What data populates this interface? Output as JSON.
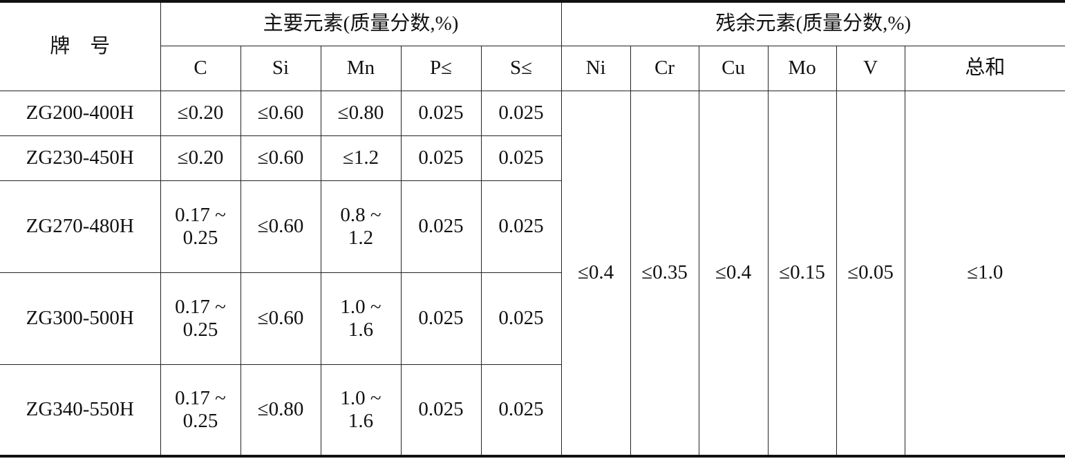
{
  "table": {
    "grade_header": "牌　号",
    "main_group": "主要元素(质量分数,%)",
    "residual_group": "残余元素(质量分数,%)",
    "main_columns": [
      "C",
      "Si",
      "Mn",
      "P≤",
      "S≤"
    ],
    "residual_columns": [
      "Ni",
      "Cr",
      "Cu",
      "Mo",
      "V",
      "总和"
    ],
    "rows": [
      {
        "grade": "ZG200-400H",
        "main": [
          [
            "≤0.20"
          ],
          [
            "≤0.60"
          ],
          [
            "≤0.80"
          ],
          [
            "0.025"
          ],
          [
            "0.025"
          ]
        ]
      },
      {
        "grade": "ZG230-450H",
        "main": [
          [
            "≤0.20"
          ],
          [
            "≤0.60"
          ],
          [
            "≤1.2"
          ],
          [
            "0.025"
          ],
          [
            "0.025"
          ]
        ]
      },
      {
        "grade": "ZG270-480H",
        "main": [
          [
            "0.17 ~",
            "0.25"
          ],
          [
            "≤0.60"
          ],
          [
            "0.8 ~",
            "1.2"
          ],
          [
            "0.025"
          ],
          [
            "0.025"
          ]
        ]
      },
      {
        "grade": "ZG300-500H",
        "main": [
          [
            "0.17 ~",
            "0.25"
          ],
          [
            "≤0.60"
          ],
          [
            "1.0 ~",
            "1.6"
          ],
          [
            "0.025"
          ],
          [
            "0.025"
          ]
        ]
      },
      {
        "grade": "ZG340-550H",
        "main": [
          [
            "0.17 ~",
            "0.25"
          ],
          [
            "≤0.80"
          ],
          [
            "1.0 ~",
            "1.6"
          ],
          [
            "0.025"
          ],
          [
            "0.025"
          ]
        ]
      }
    ],
    "residual_values": [
      "≤0.4",
      "≤0.35",
      "≤0.4",
      "≤0.15",
      "≤0.05",
      "≤1.0"
    ]
  }
}
